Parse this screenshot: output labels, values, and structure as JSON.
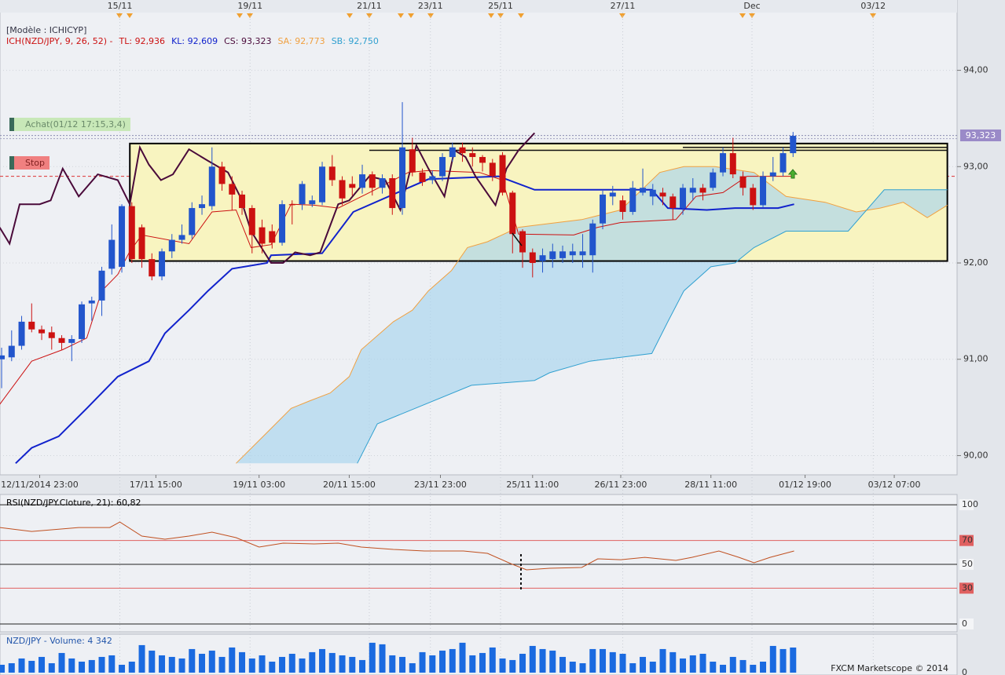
{
  "chart_data": [
    {
      "type": "candlestick",
      "model": "[Modèle : ICHICYP]",
      "legend": [
        {
          "text": "ICH(NZD/JPY, 9, 26, 52) -",
          "color": "#cc1111"
        },
        {
          "text": "TL: 92,936",
          "color": "#cc1111"
        },
        {
          "text": "KL: 92,609",
          "color": "#1122cc"
        },
        {
          "text": "CS: 93,323",
          "color": "#4a0a3a"
        },
        {
          "text": "SA: 92,773",
          "color": "#f0a040"
        },
        {
          "text": "SB: 92,750",
          "color": "#30a0d0"
        }
      ],
      "annotations": {
        "buy": "Achat(01/12 17:15,3,4)",
        "stop": "Stop"
      },
      "stop_level": 92.9,
      "last_price": 93.323,
      "last_price_label": "93,323",
      "box": {
        "top": 93.24,
        "bottom": 92.02,
        "x0": 12.8,
        "x1": 94.4,
        "color": "#f8f4c0"
      },
      "hlines": [
        {
          "value": 93.17,
          "x0": 36.7,
          "x1": 94.4
        },
        {
          "value": 93.2,
          "x0": 68.0,
          "x1": 94.4
        }
      ],
      "top_labels": [
        {
          "value": 11.8,
          "label": "15/11"
        },
        {
          "value": 24.8,
          "label": "19/11"
        },
        {
          "value": 36.7,
          "label": "21/11"
        },
        {
          "value": 42.8,
          "label": "23/11"
        },
        {
          "value": 49.8,
          "label": "25/11"
        },
        {
          "value": 62.0,
          "label": "27/11"
        },
        {
          "value": 74.9,
          "label": "Dec"
        },
        {
          "value": 87.0,
          "label": "03/12"
        }
      ],
      "xlim": [
        -0.16,
        95.37
      ],
      "xticks": [
        {
          "value": 3.8,
          "label": "12/11/2014 23:00"
        },
        {
          "value": 15.4,
          "label": "17/11 15:00"
        },
        {
          "value": 25.7,
          "label": "19/11 03:00"
        },
        {
          "value": 34.7,
          "label": "20/11 15:00"
        },
        {
          "value": 43.8,
          "label": "23/11 23:00"
        },
        {
          "value": 53.0,
          "label": "25/11 11:00"
        },
        {
          "value": 61.8,
          "label": "26/11 23:00"
        },
        {
          "value": 70.8,
          "label": "28/11 11:00"
        },
        {
          "value": 80.2,
          "label": "01/12 19:00"
        },
        {
          "value": 89.1,
          "label": "03/12 07:00"
        }
      ],
      "ylim": [
        89.8,
        94.73
      ],
      "yticks": [
        {
          "value": 90,
          "label": "90,00"
        },
        {
          "value": 91,
          "label": "91,00"
        },
        {
          "value": 92,
          "label": "92,00"
        },
        {
          "value": 93,
          "label": "93,00"
        },
        {
          "value": 94,
          "label": "94,00"
        }
      ],
      "grid": true,
      "up_color": "#2255cc",
      "down_color": "#cc1111",
      "open": [
        91.0,
        91.02,
        91.14,
        91.39,
        91.31,
        91.28,
        91.22,
        91.17,
        91.21,
        91.58,
        91.61,
        91.94,
        91.96,
        92.59,
        92.37,
        92.04,
        91.86,
        92.12,
        92.24,
        92.29,
        92.57,
        92.59,
        93.0,
        92.82,
        92.71,
        92.57,
        92.37,
        92.33,
        92.21,
        92.61,
        92.61,
        92.61,
        92.63,
        93.0,
        92.86,
        92.82,
        92.78,
        92.92,
        92.78,
        92.88,
        92.57,
        93.18,
        92.94,
        92.86,
        92.9,
        93.1,
        93.2,
        93.14,
        93.1,
        93.04,
        93.12,
        92.73,
        92.33,
        92.11,
        92.02,
        92.04,
        92.05,
        92.08,
        92.08,
        92.08,
        92.41,
        92.69,
        92.65,
        92.53,
        92.73,
        92.69,
        92.73,
        92.69,
        92.57,
        92.73,
        92.78,
        92.78,
        92.94,
        93.14,
        92.9,
        92.78,
        92.6,
        92.9,
        92.94,
        93.14
      ],
      "high": [
        91.12,
        91.3,
        91.45,
        91.58,
        91.35,
        91.34,
        91.25,
        91.25,
        91.6,
        91.65,
        91.96,
        92.4,
        92.61,
        92.63,
        92.4,
        92.1,
        92.15,
        92.3,
        92.4,
        92.63,
        92.7,
        93.2,
        93.05,
        92.9,
        92.75,
        92.6,
        92.45,
        92.4,
        92.65,
        92.65,
        92.85,
        92.7,
        93.05,
        93.12,
        92.9,
        92.9,
        93.02,
        92.95,
        92.92,
        92.92,
        93.67,
        93.3,
        92.98,
        92.96,
        93.14,
        93.25,
        93.25,
        93.2,
        93.12,
        93.08,
        93.15,
        92.75,
        92.35,
        92.15,
        92.15,
        92.2,
        92.18,
        92.2,
        92.3,
        92.45,
        92.75,
        92.8,
        92.7,
        92.85,
        92.98,
        92.82,
        92.78,
        92.72,
        92.82,
        92.88,
        92.82,
        92.98,
        93.2,
        93.3,
        92.95,
        92.82,
        92.95,
        93.1,
        93.2,
        93.36
      ],
      "low": [
        90.7,
        90.98,
        91.1,
        91.28,
        91.2,
        91.1,
        91.1,
        90.98,
        91.17,
        91.4,
        91.45,
        91.88,
        91.9,
        92.0,
        91.95,
        91.82,
        91.82,
        92.05,
        92.2,
        92.25,
        92.5,
        92.55,
        92.75,
        92.55,
        92.5,
        92.1,
        92.1,
        92.15,
        92.18,
        92.4,
        92.55,
        92.58,
        92.6,
        92.8,
        92.6,
        92.7,
        92.72,
        92.7,
        92.72,
        92.5,
        92.5,
        92.9,
        92.8,
        92.82,
        92.85,
        93.05,
        93.05,
        93.0,
        92.95,
        92.85,
        92.7,
        92.1,
        91.95,
        91.85,
        91.9,
        91.95,
        92.0,
        92.0,
        91.95,
        91.9,
        92.35,
        92.6,
        92.45,
        92.5,
        92.7,
        92.6,
        92.6,
        92.45,
        92.5,
        92.65,
        92.65,
        92.75,
        92.9,
        92.88,
        92.7,
        92.55,
        92.58,
        92.85,
        92.9,
        93.1
      ],
      "close": [
        91.04,
        91.14,
        91.39,
        91.31,
        91.27,
        91.22,
        91.17,
        91.21,
        91.57,
        91.61,
        91.92,
        92.24,
        92.59,
        92.04,
        92.04,
        91.86,
        92.12,
        92.24,
        92.29,
        92.57,
        92.61,
        93.0,
        92.82,
        92.71,
        92.57,
        92.29,
        92.2,
        92.21,
        92.61,
        92.6,
        92.82,
        92.65,
        93.0,
        92.86,
        92.67,
        92.78,
        92.92,
        92.78,
        92.88,
        92.57,
        93.2,
        92.94,
        92.84,
        92.9,
        93.1,
        93.2,
        93.14,
        93.1,
        93.04,
        92.9,
        92.73,
        92.3,
        92.11,
        92.0,
        92.08,
        92.12,
        92.12,
        92.12,
        92.12,
        92.41,
        92.71,
        92.73,
        92.53,
        92.78,
        92.78,
        92.76,
        92.69,
        92.57,
        92.78,
        92.78,
        92.73,
        92.94,
        93.14,
        92.92,
        92.78,
        92.6,
        92.9,
        92.94,
        93.14,
        93.32
      ],
      "lines": [
        {
          "color": "#cc1111",
          "x": [
            -0.2,
            3.0,
            6.1,
            8.5,
            10.0,
            11.6,
            12.8,
            14.0,
            18.7,
            21.0,
            23.4,
            24.9,
            26.9,
            28.9,
            31.2,
            33.6,
            36.7,
            40.6,
            42.6,
            47.7,
            50.0,
            51.6,
            57.1,
            59.5,
            61.8,
            67.3,
            69.3,
            72.0,
            74.4,
            79.1
          ],
          "values": [
            90.53,
            90.98,
            91.1,
            91.22,
            91.71,
            91.88,
            92.12,
            92.29,
            92.2,
            92.53,
            92.55,
            92.16,
            92.19,
            92.61,
            92.6,
            92.57,
            92.73,
            92.94,
            92.96,
            92.94,
            92.86,
            92.3,
            92.29,
            92.37,
            92.42,
            92.45,
            92.69,
            92.73,
            92.9,
            92.9
          ]
        },
        {
          "color": "#1122cc",
          "x": [
            1.4,
            3.0,
            5.7,
            8.5,
            11.6,
            14.7,
            16.3,
            18.7,
            20.6,
            23.0,
            26.5,
            26.9,
            32.0,
            35.1,
            40.6,
            42.6,
            49.6,
            53.2,
            64.9,
            66.5,
            70.4,
            73.2,
            77.5,
            79.1
          ],
          "values": [
            89.92,
            90.08,
            90.2,
            90.49,
            90.82,
            90.98,
            91.27,
            91.51,
            91.71,
            91.94,
            92.0,
            92.08,
            92.1,
            92.53,
            92.78,
            92.87,
            92.9,
            92.76,
            92.76,
            92.57,
            92.55,
            92.57,
            92.57,
            92.61
          ]
        },
        {
          "color": "#4a0a3a",
          "x": [
            -0.2,
            0.8,
            1.8,
            3.8,
            4.9,
            6.1,
            7.7,
            9.6,
            11.6,
            12.8,
            13.8,
            14.7,
            15.9,
            17.1,
            18.7,
            20.6,
            22.6,
            23.8,
            24.9,
            26.9,
            28.1,
            29.3,
            30.8,
            31.8,
            33.6,
            34.7,
            36.7,
            38.3,
            39.8,
            41.4,
            42.6,
            44.2,
            45.2,
            46.3,
            47.3,
            49.3,
            50.4,
            51.6,
            53.2
          ],
          "values": [
            92.37,
            92.2,
            92.61,
            92.61,
            92.65,
            92.98,
            92.69,
            92.92,
            92.86,
            92.61,
            93.2,
            93.02,
            92.86,
            92.92,
            93.18,
            93.06,
            92.94,
            92.69,
            92.33,
            92.0,
            92.0,
            92.11,
            92.08,
            92.11,
            92.61,
            92.65,
            92.9,
            92.86,
            92.55,
            93.22,
            92.98,
            92.69,
            93.17,
            93.1,
            92.9,
            92.6,
            92.98,
            93.17,
            93.35
          ]
        },
        {
          "color": "#f0a040",
          "x": [
            23.4,
            26.5,
            28.9,
            30.8,
            32.8,
            34.7,
            35.9,
            39.1,
            41.0,
            42.6,
            44.9,
            46.5,
            48.5,
            51.6,
            54.7,
            57.9,
            61.8,
            65.7,
            68.1,
            71.2,
            75.1,
            78.3,
            82.2,
            85.3,
            87.7,
            90.0,
            92.4,
            94.4
          ],
          "values": [
            89.92,
            90.24,
            90.49,
            90.57,
            90.65,
            90.82,
            91.1,
            91.39,
            91.51,
            91.71,
            91.92,
            92.16,
            92.22,
            92.37,
            92.41,
            92.45,
            92.55,
            92.94,
            93.0,
            93.0,
            92.94,
            92.69,
            92.63,
            92.53,
            92.57,
            92.63,
            92.47,
            92.6
          ]
        },
        {
          "color": "#30a0d0",
          "x": [
            35.5,
            37.5,
            46.9,
            53.2,
            54.7,
            58.7,
            64.9,
            66.5,
            68.1,
            70.8,
            73.2,
            75.1,
            78.3,
            84.5,
            88.1,
            94.4
          ],
          "values": [
            89.92,
            90.33,
            90.73,
            90.78,
            90.86,
            90.98,
            91.06,
            91.39,
            91.71,
            91.96,
            92.0,
            92.16,
            92.33,
            92.33,
            92.76,
            92.76
          ]
        }
      ],
      "cloud_color": "#a8d4ee"
    },
    {
      "type": "line",
      "title": "RSI(NZD/JPY.Cloture, 21): 60,82",
      "color": "#c05020",
      "ylim": [
        -6.6,
        108.6
      ],
      "yticks": [
        0,
        30,
        50,
        70,
        100
      ],
      "levels": [
        70,
        30
      ],
      "level_color": "#e06060",
      "x": [
        -0.2,
        3.0,
        7.7,
        10.8,
        11.8,
        14.0,
        16.3,
        18.7,
        21.0,
        23.4,
        25.7,
        28.1,
        31.2,
        33.6,
        35.9,
        39.1,
        42.2,
        46.1,
        48.5,
        50.8,
        52.4,
        54.7,
        57.9,
        59.5,
        61.8,
        64.2,
        67.3,
        68.9,
        71.6,
        73.6,
        75.1,
        76.7,
        79.1
      ],
      "values": [
        80.9,
        77.6,
        80.9,
        80.9,
        85.5,
        73.7,
        71.1,
        73.7,
        77.0,
        72.4,
        64.5,
        67.8,
        67.1,
        67.8,
        64.5,
        62.5,
        61.2,
        61.2,
        59.2,
        50.7,
        45.4,
        46.7,
        47.4,
        54.6,
        53.9,
        55.9,
        53.3,
        55.9,
        61.2,
        55.9,
        51.3,
        55.9,
        61.2
      ]
    },
    {
      "type": "bar",
      "title": "NZD/JPY - Volume: 4 342",
      "footer": "FXCM Marketscope © 2014",
      "color": "#1a6ae0",
      "ylim": [
        0,
        6650
      ],
      "yticks": [
        0
      ],
      "values": [
        1360,
        1630,
        2450,
        2040,
        2720,
        1630,
        3400,
        2450,
        1900,
        2180,
        2720,
        2990,
        1360,
        1900,
        4760,
        3810,
        2990,
        2720,
        2450,
        4080,
        3260,
        3810,
        2720,
        4350,
        3540,
        2450,
        2990,
        1900,
        2720,
        3260,
        2450,
        3540,
        4080,
        3400,
        2990,
        2720,
        2180,
        5170,
        4900,
        2990,
        2720,
        1630,
        3540,
        2990,
        3810,
        4080,
        5170,
        2990,
        3400,
        4350,
        2450,
        2180,
        3260,
        4620,
        4080,
        3810,
        2720,
        1900,
        1630,
        4080,
        4080,
        3540,
        3260,
        1630,
        2720,
        1900,
        4080,
        3540,
        2450,
        2990,
        3260,
        1900,
        1360,
        2720,
        2180,
        1360,
        1900,
        4620,
        4080,
        4342
      ]
    }
  ]
}
